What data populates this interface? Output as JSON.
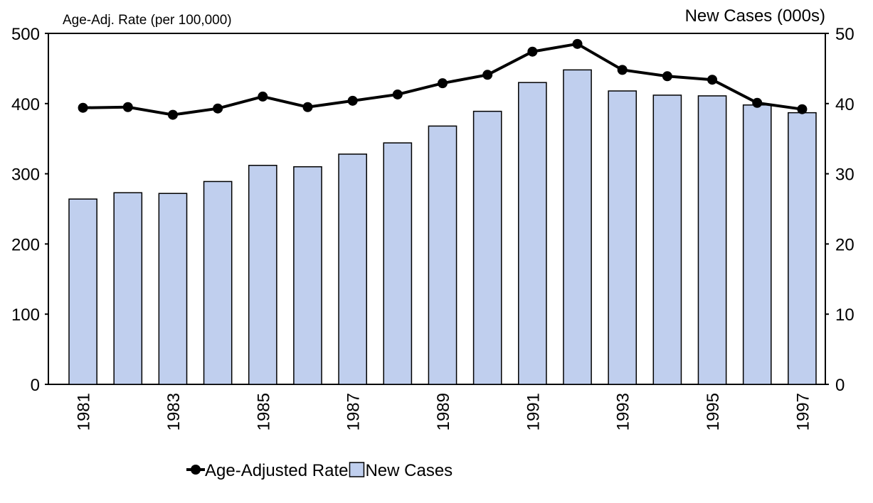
{
  "chart_data": {
    "type": "bar-line",
    "y_label": "Age-Adj. Rate (per 100,000)",
    "y2_label": "New Cases (000s)",
    "categories": [
      "1981",
      null,
      "1983",
      null,
      "1985",
      null,
      "1987",
      null,
      "1989",
      null,
      "1991",
      null,
      "1993",
      null,
      "1995",
      null,
      "1997"
    ],
    "series": [
      {
        "name": "Age-Adjusted Rate",
        "type": "line",
        "color": "#000000",
        "values": [
          394,
          395,
          384,
          393,
          410,
          395,
          404,
          413,
          429,
          441,
          474,
          485,
          448,
          439,
          434,
          401,
          392
        ]
      },
      {
        "name": "New Cases",
        "type": "bar",
        "axis": "y2",
        "color": "#c0cfee",
        "values": [
          26.4,
          27.3,
          27.2,
          28.9,
          31.2,
          31.0,
          32.8,
          34.4,
          36.8,
          38.9,
          43.0,
          44.8,
          41.8,
          41.2,
          41.1,
          39.8,
          38.7
        ]
      }
    ],
    "ylim": [
      0,
      500
    ],
    "yticks": [
      0,
      100,
      200,
      300,
      400,
      500
    ],
    "y2lim": [
      0,
      50
    ],
    "y2ticks": [
      0,
      10,
      20,
      30,
      40,
      50
    ]
  }
}
